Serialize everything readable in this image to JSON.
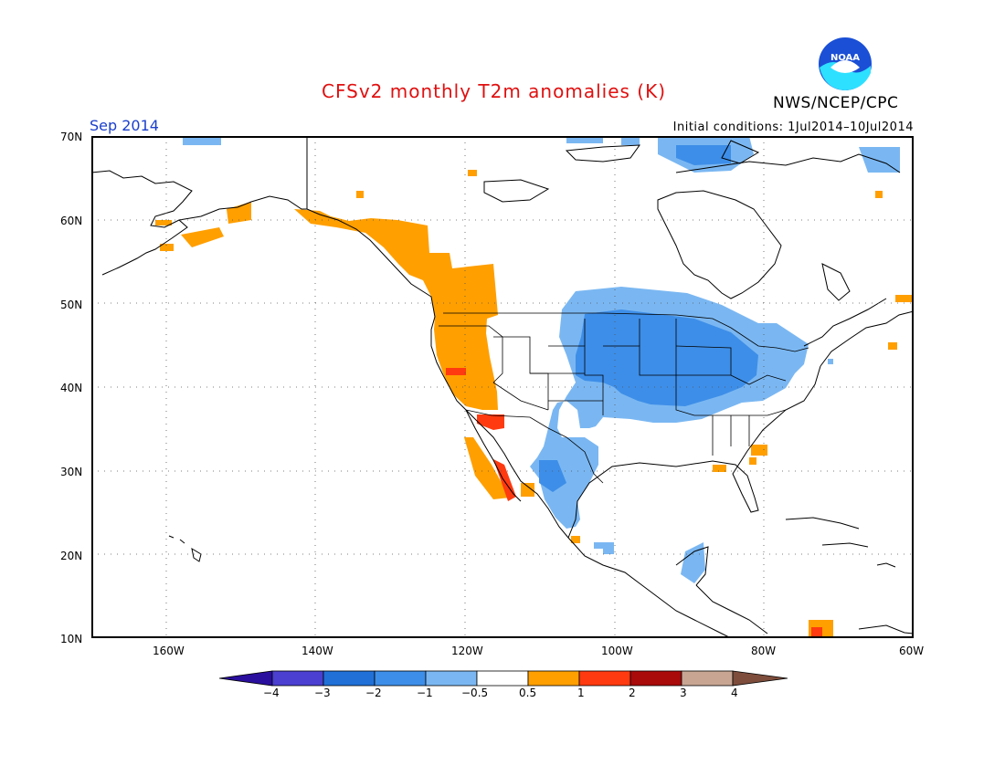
{
  "header": {
    "title": "CFSv2 monthly T2m anomalies (K)",
    "agency": "NWS/NCEP/CPC",
    "logo_text": "NOAA",
    "period": "Sep 2014",
    "initial_conditions": "Initial conditions: 1Jul2014–10Jul2014"
  },
  "map": {
    "projection": "equirectangular",
    "lon_range": [
      -170,
      -60
    ],
    "lat_range": [
      10,
      70
    ],
    "lat_labels": [
      "70N",
      "60N",
      "50N",
      "40N",
      "30N",
      "20N",
      "10N"
    ],
    "lon_labels": [
      "160W",
      "140W",
      "120W",
      "100W",
      "80W",
      "60W"
    ],
    "gridlines": "dotted"
  },
  "legend": {
    "colors": [
      "#2a0f9e",
      "#4a3fd0",
      "#2070d8",
      "#3d8ee8",
      "#7ab7f2",
      "#ffffff",
      "#ff9f00",
      "#ff3a10",
      "#a90a0a",
      "#c8a593",
      "#7e4d3c"
    ],
    "labels": [
      "−4",
      "−3",
      "−2",
      "−1",
      "−0.5",
      "0.5",
      "1",
      "2",
      "3",
      "4"
    ],
    "colors_meaning": {
      "strong_cold": "#2070d8",
      "cold": "#3d8ee8",
      "slight_cold": "#7ab7f2",
      "slight_warm": "#ff9f00",
      "warm": "#ff3a10"
    }
  }
}
